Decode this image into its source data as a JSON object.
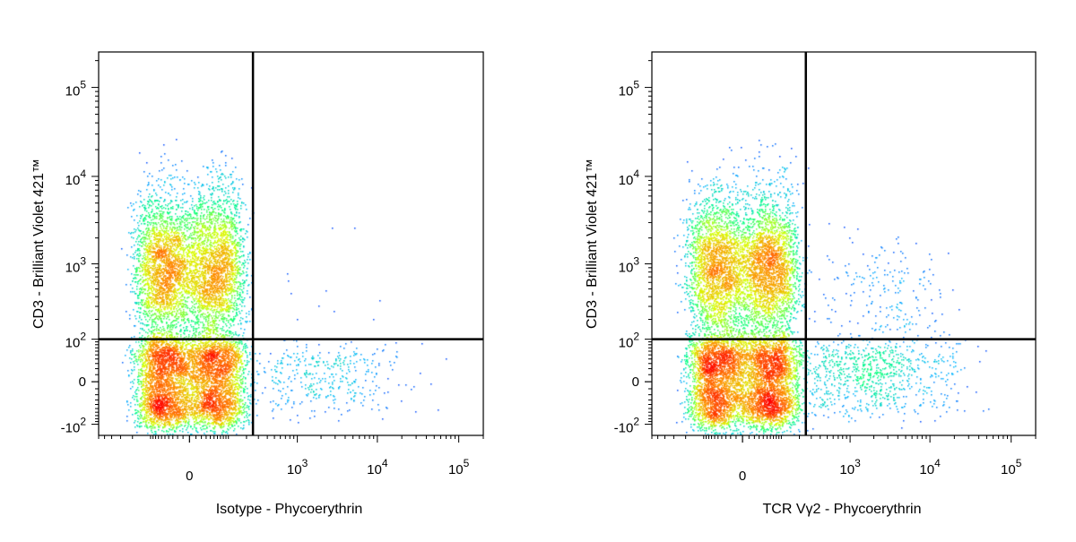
{
  "colors": {
    "density_scale": [
      "#0000ff",
      "#00b4ff",
      "#00ff80",
      "#d8ff00",
      "#ff8c00",
      "#ff0000"
    ],
    "axis": "#000000",
    "gate": "#000000"
  },
  "chart_data": [
    {
      "type": "scatter",
      "subtype": "flow-cytometry-density-dot-plot",
      "title": "",
      "xlabel": "Isotype - Phycoerythrin",
      "ylabel": "CD3 - Brilliant Violet 421™",
      "x_scale": "biexponential",
      "y_scale": "biexponential",
      "xlim": [
        -600,
        200000
      ],
      "ylim": [
        -150,
        250000
      ],
      "x_ticks": [
        {
          "value": 0,
          "label": "0"
        },
        {
          "value": 1000,
          "base": "10",
          "exp": "3"
        },
        {
          "value": 10000,
          "base": "10",
          "exp": "4"
        },
        {
          "value": 100000,
          "base": "10",
          "exp": "5"
        }
      ],
      "y_ticks": [
        {
          "value": -100,
          "base": "-10",
          "exp": "2"
        },
        {
          "value": 0,
          "label": "0"
        },
        {
          "value": 100,
          "base": "10",
          "exp": "2"
        },
        {
          "value": 1000,
          "base": "10",
          "exp": "3"
        },
        {
          "value": 10000,
          "base": "10",
          "exp": "4"
        },
        {
          "value": 100000,
          "base": "10",
          "exp": "5"
        }
      ],
      "quadrant_gate": {
        "x": 250,
        "y": 100
      },
      "populations": [
        {
          "x_center": 0,
          "y_center": 900,
          "x_spread": 80,
          "y_spread": 0.45,
          "count": 5200
        },
        {
          "x_center": 0,
          "y_center": 0,
          "x_spread": 80,
          "y_spread": 55,
          "count": 5600
        },
        {
          "x_center": 1800,
          "y_center": 10,
          "x_spread": 0.55,
          "y_spread": 35,
          "count": 420
        },
        {
          "x_center": 1200,
          "y_center": 500,
          "x_spread": 0.6,
          "y_spread": 0.35,
          "count": 16
        }
      ]
    },
    {
      "type": "scatter",
      "subtype": "flow-cytometry-density-dot-plot",
      "title": "",
      "xlabel": "TCR Vγ2 - Phycoerythrin",
      "ylabel": "CD3 - Brilliant Violet 421™",
      "x_scale": "biexponential",
      "y_scale": "biexponential",
      "xlim": [
        -600,
        200000
      ],
      "ylim": [
        -150,
        250000
      ],
      "x_ticks": [
        {
          "value": 0,
          "label": "0"
        },
        {
          "value": 1000,
          "base": "10",
          "exp": "3"
        },
        {
          "value": 10000,
          "base": "10",
          "exp": "4"
        },
        {
          "value": 100000,
          "base": "10",
          "exp": "5"
        }
      ],
      "y_ticks": [
        {
          "value": -100,
          "base": "-10",
          "exp": "2"
        },
        {
          "value": 0,
          "label": "0"
        },
        {
          "value": 100,
          "base": "10",
          "exp": "2"
        },
        {
          "value": 1000,
          "base": "10",
          "exp": "3"
        },
        {
          "value": 10000,
          "base": "10",
          "exp": "4"
        },
        {
          "value": 100000,
          "base": "10",
          "exp": "5"
        }
      ],
      "quadrant_gate": {
        "x": 250,
        "y": 100
      },
      "populations": [
        {
          "x_center": 0,
          "y_center": 900,
          "x_spread": 80,
          "y_spread": 0.45,
          "count": 5200
        },
        {
          "x_center": 0,
          "y_center": 0,
          "x_spread": 80,
          "y_spread": 55,
          "count": 5600
        },
        {
          "x_center": 1500,
          "y_center": 10,
          "x_spread": 0.6,
          "y_spread": 38,
          "count": 900
        },
        {
          "x_center": 4000,
          "y_center": 350,
          "x_spread": 0.35,
          "y_spread": 0.4,
          "count": 180
        },
        {
          "x_center": 800,
          "y_center": 500,
          "x_spread": 0.6,
          "y_spread": 0.35,
          "count": 70
        }
      ]
    }
  ]
}
